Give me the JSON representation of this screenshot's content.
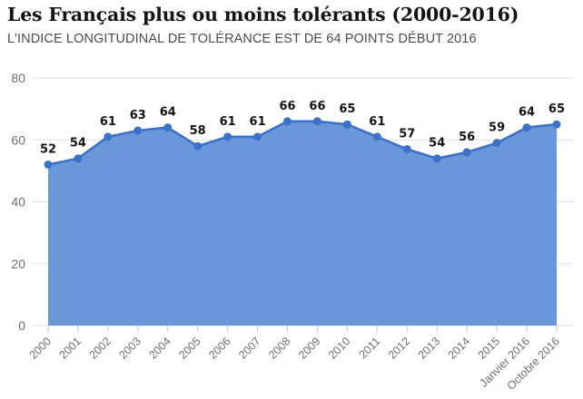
{
  "chart_data": {
    "type": "area",
    "title": "Les Français plus ou moins tolérants (2000-2016)",
    "subtitle": "L'INDICE LONGITUDINAL DE TOLÉRANCE EST DE 64 POINTS DÉBUT 2016",
    "categories": [
      "2000",
      "2001",
      "2002",
      "2003",
      "2004",
      "2005",
      "2006",
      "2007",
      "2008",
      "2009",
      "2010",
      "2011",
      "2012",
      "2013",
      "2014",
      "2015",
      "Janvier 2016",
      "Octobre 2016"
    ],
    "values": [
      52,
      54,
      61,
      63,
      64,
      58,
      61,
      61,
      66,
      66,
      65,
      61,
      57,
      54,
      56,
      59,
      64,
      65
    ],
    "xlabel": "",
    "ylabel": "",
    "ylim": [
      0,
      80
    ],
    "yticks": [
      0,
      20,
      40,
      60,
      80
    ],
    "grid": true,
    "legend_position": "none",
    "point_labels": true,
    "colors": {
      "area_fill": "#6a96da",
      "line": "#3b72c8",
      "marker": "#3b72c8",
      "value_label": "#141414",
      "axis_text": "#6e6e6e",
      "gridline": "#e0e0e0",
      "tick": "#c9c9c9"
    }
  }
}
